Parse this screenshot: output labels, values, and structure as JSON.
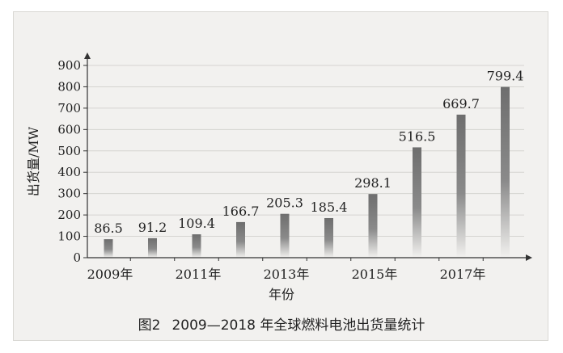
{
  "chart_data": {
    "type": "bar",
    "title": "",
    "ylabel": "出货量/MW",
    "xlabel": "年份",
    "ylim": [
      0,
      900
    ],
    "yticks": [
      0,
      100,
      200,
      300,
      400,
      500,
      600,
      700,
      800,
      900
    ],
    "x": [
      2009,
      2010,
      2011,
      2012,
      2013,
      2014,
      2015,
      2016,
      2017,
      2018
    ],
    "x_tick_labels": [
      "2009年",
      "2011年",
      "2013年",
      "2015年",
      "2017年"
    ],
    "values": [
      86.5,
      91.2,
      109.4,
      166.7,
      205.3,
      185.4,
      298.1,
      516.5,
      669.7,
      799.4
    ],
    "value_labels": [
      "86.5",
      "91.2",
      "109.4",
      "166.7",
      "205.3",
      "185.4",
      "298.1",
      "516.5",
      "669.7",
      "799.4"
    ],
    "grid": true,
    "bar_color": "#777777"
  },
  "caption": {
    "number": "图2",
    "text": "2009—2018 年全球燃料电池出货量统计"
  }
}
